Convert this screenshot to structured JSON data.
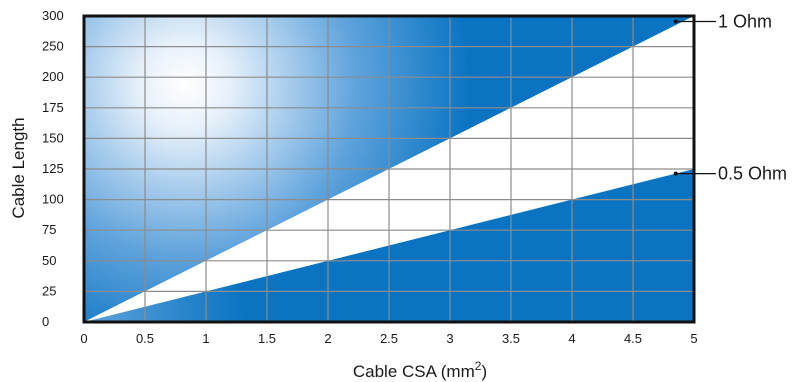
{
  "chart_data": {
    "type": "area",
    "xlabel": "Cable CSA (mm",
    "xlabel_sup": "2",
    "xlabel_suffix": ")",
    "ylabel": "Cable Length",
    "xlim": [
      0,
      5
    ],
    "ylim": [
      0,
      300
    ],
    "x_ticks": [
      0,
      0.5,
      1,
      1.5,
      2,
      2.5,
      3,
      3.5,
      4,
      4.5,
      5
    ],
    "x_tick_labels": [
      "0",
      "0.5",
      "1",
      "1.5",
      "2",
      "2.5",
      "3",
      "3.5",
      "4",
      "4.5",
      "5"
    ],
    "y_ticks": [
      0,
      25,
      50,
      75,
      100,
      125,
      150,
      175,
      200,
      250,
      300
    ],
    "y_tick_labels": [
      "0",
      "25",
      "50",
      "75",
      "100",
      "125",
      "150",
      "175",
      "200",
      "250",
      "300"
    ],
    "grid": true,
    "series": [
      {
        "name": "1 Ohm",
        "x": [
          0,
          5
        ],
        "y": [
          0,
          300
        ]
      },
      {
        "name": "0.5 Ohm",
        "x": [
          0,
          5
        ],
        "y": [
          0,
          125
        ]
      }
    ],
    "colors": {
      "fill_dark": "#0a74c2",
      "fill_light": "#ffffff",
      "between": "#ffffff",
      "grid": "#8c8c8c",
      "frame": "#111111"
    }
  }
}
